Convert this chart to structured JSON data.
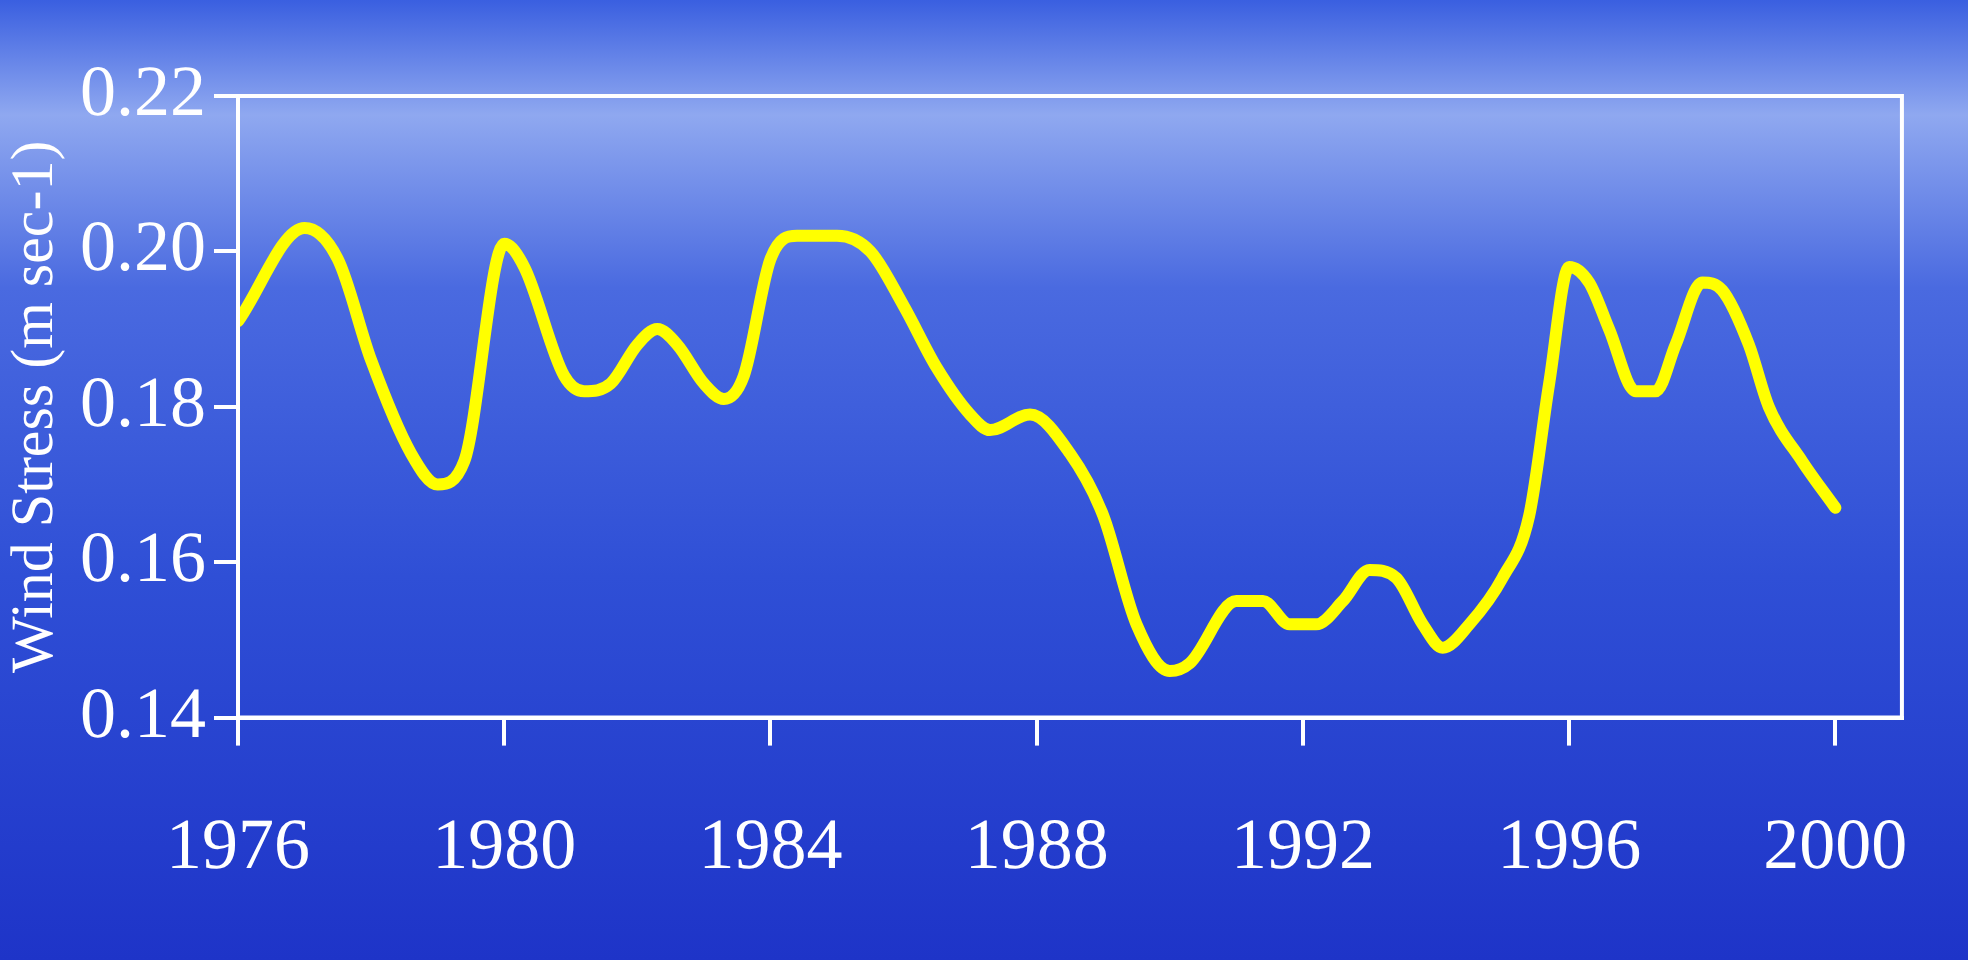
{
  "chart_data": {
    "type": "line",
    "ylabel": "Wind Stress (m sec-1)",
    "x": [
      1976,
      1977,
      1977.5,
      1978,
      1978.6,
      1979,
      1979.4,
      1980,
      1980.3,
      1980.9,
      1981.2,
      1981.6,
      1982,
      1982.3,
      1982.6,
      1983,
      1983.3,
      1983.6,
      1984,
      1984.4,
      1985,
      1985.5,
      1986,
      1986.5,
      1987,
      1987.3,
      1987.9,
      1988.5,
      1989,
      1989.5,
      1990,
      1990.3,
      1991,
      1991.4,
      1991.8,
      1992.2,
      1992.6,
      1993,
      1993.4,
      1993.8,
      1994.1,
      1994.5,
      1995,
      1995.4,
      1995.7,
      1996,
      1996.3,
      1996.6,
      1997,
      1997.3,
      1997.6,
      1998,
      1998.3,
      1998.7,
      1999,
      1999.5,
      2000
    ],
    "series": [
      {
        "color": "#ffff00",
        "values": [
          0.191,
          0.203,
          0.199,
          0.186,
          0.174,
          0.17,
          0.173,
          0.201,
          0.198,
          0.184,
          0.182,
          0.183,
          0.188,
          0.19,
          0.188,
          0.183,
          0.181,
          0.184,
          0.199,
          0.202,
          0.202,
          0.2,
          0.193,
          0.185,
          0.179,
          0.177,
          0.179,
          0.174,
          0.166,
          0.152,
          0.146,
          0.147,
          0.155,
          0.155,
          0.152,
          0.152,
          0.155,
          0.159,
          0.158,
          0.152,
          0.149,
          0.152,
          0.158,
          0.166,
          0.183,
          0.198,
          0.196,
          0.19,
          0.182,
          0.182,
          0.188,
          0.196,
          0.195,
          0.188,
          0.18,
          0.173,
          0.167
        ]
      }
    ],
    "xlim": [
      1976,
      2001
    ],
    "xticks": [
      1976,
      1980,
      1984,
      1988,
      1992,
      1996,
      2000
    ],
    "ylim": [
      0.14,
      0.22
    ],
    "yticks": [
      0.14,
      0.16,
      0.18,
      {
        "value": 0.2,
        "label": "0.20"
      },
      0.22
    ],
    "marker": "none",
    "line_style": "solid",
    "legend": false
  }
}
